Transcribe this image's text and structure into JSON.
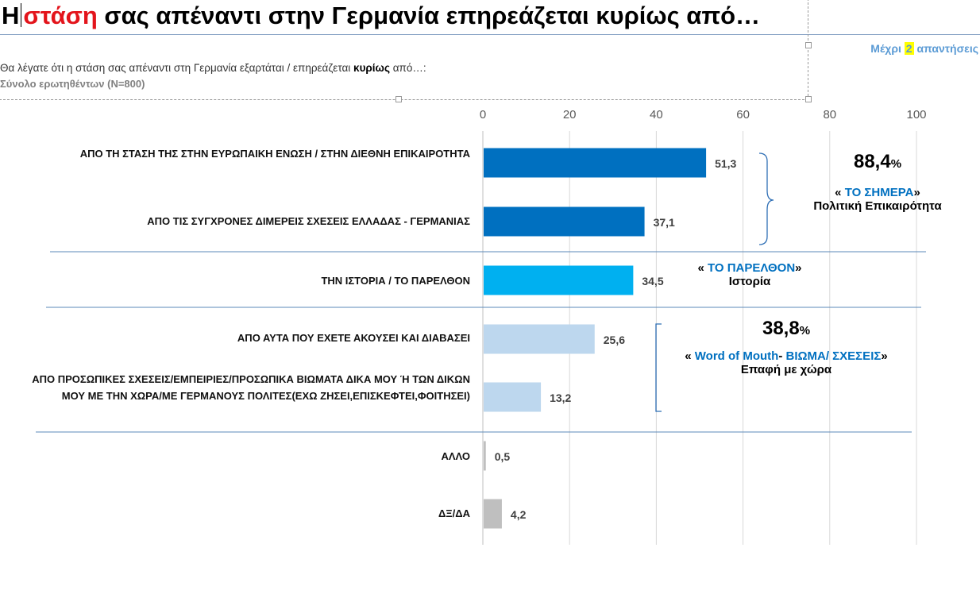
{
  "header": {
    "title_prefix": "Η",
    "title_highlight": "στάση",
    "title_rest": "σας απέναντι στην Γερμανία επηρεάζεται κυρίως από…",
    "answers_pre": "Μέχρι",
    "answers_num": "2",
    "answers_post": "απαντήσεις",
    "question_pre": "Θα λέγατε ότι η στάση σας απέναντι στη Γερμανία εξαρτάται / επηρεάζεται",
    "question_bold": "κυρίως",
    "question_post": "από…:",
    "base": "Σύνολο ερωτηθέντων (N=800)"
  },
  "chart_data": {
    "type": "bar",
    "orientation": "horizontal",
    "xlim": [
      0,
      100
    ],
    "xticks": [
      "0",
      "20",
      "40",
      "60",
      "80",
      "100"
    ],
    "grid": true,
    "categories": [
      "ΑΠΟ ΤΗ ΣΤΑΣΗ ΤΗΣ ΣΤΗΝ ΕΥΡΩΠΑΙΚΗ ΕΝΩΣΗ / ΣΤΗΝ ΔΙΕΘΝΗ ΕΠΙΚΑΙΡΟΤΗΤΑ",
      "ΑΠΟ ΤΙΣ ΣΥΓΧΡΟΝΕΣ ΔΙΜΕΡΕΙΣ ΣΧΕΣΕΙΣ ΕΛΛΑΔΑΣ - ΓΕΡΜΑΝΙΑΣ",
      "ΤΗΝ ΙΣΤΟΡΙΑ / ΤΟ ΠΑΡΕΛΘΟΝ",
      "ΑΠΟ ΑΥΤΑ ΠΟΥ ΕΧΕΤΕ ΑΚΟΥΣΕΙ ΚΑΙ ΔΙΑΒΑΣΕΙ",
      "ΑΠΟ ΠΡΟΣΩΠΙΚΕΣ ΣΧΕΣΕΙΣ/ΕΜΠΕΙΡΙΕΣ/ΠΡΟΣΩΠΙΚΑ ΒΙΩΜΑΤΑ ΔΙΚΑ ΜΟΥ Ή ΤΩΝ ΔΙΚΩΝ ΜΟΥ ΜΕ ΤΗΝ ΧΩΡΑ/ΜΕ ΓΕΡΜΑΝΟΥΣ ΠΟΛΙΤΕΣ(ΕΧΩ ΖΗΣΕΙ,ΕΠΙΣΚΕΦΤΕΙ,ΦΟΙΤΗΣΕΙ)",
      "ΑΛΛΟ",
      "ΔΞ/ΔΑ"
    ],
    "values": [
      51.3,
      37.1,
      34.5,
      25.6,
      13.2,
      0.5,
      4.2
    ],
    "value_labels": [
      "51,3",
      "37,1",
      "34,5",
      "25,6",
      "13,2",
      "0,5",
      "4,2"
    ],
    "colors": [
      "#0070c0",
      "#0070c0",
      "#00b0f0",
      "#bdd7ee",
      "#bdd7ee",
      "#bfbfbf",
      "#bfbfbf"
    ],
    "annotations": [
      {
        "total": "88,4",
        "pct": "%",
        "q_open": "«",
        "label": "ΤΟ ΣΗΜΕΡΑ",
        "q_close": "»",
        "sub": "Πολιτική Επικαιρότητα"
      },
      {
        "q_open": "«",
        "label": "ΤΟ ΠΑΡΕΛΘΟΝ",
        "q_close": "»",
        "sub": "Ιστορία"
      },
      {
        "total": "38,8",
        "pct": "%",
        "q_open": "«",
        "label_a": "Word of Mouth",
        "dash": "-",
        "label_b": "ΒΙΩΜΑ/ ΣΧΕΣΕΙΣ",
        "q_close": "»",
        "sub": "Επαφή με χώρα"
      }
    ]
  }
}
